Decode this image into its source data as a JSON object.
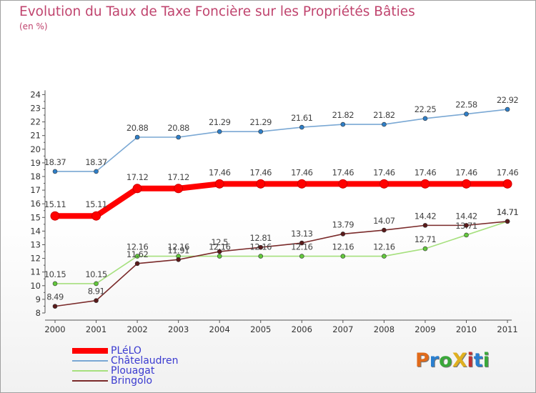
{
  "title": "Evolution du Taux de Taxe Foncière sur les Propriétés Bâties",
  "subtitle": "(en %)",
  "logo": {
    "text": "ProXiti",
    "letter_colors": [
      "#e06a1a",
      "#2a7fd0",
      "#3aa83a",
      "#e0b020",
      "#c03030",
      "#2a7fd0",
      "#3aa83a"
    ]
  },
  "chart_data": {
    "type": "line",
    "title": "Evolution du Taux de Taxe Foncière sur les Propriétés Bâties",
    "ylabel": "(en %)",
    "xlabel": "",
    "categories": [
      "2000",
      "2001",
      "2002",
      "2003",
      "2004",
      "2005",
      "2006",
      "2007",
      "2008",
      "2009",
      "2010",
      "2011"
    ],
    "ylim": [
      8,
      24
    ],
    "yticks": [
      8,
      9,
      10,
      11,
      12,
      13,
      14,
      15,
      16,
      17,
      18,
      19,
      20,
      21,
      22,
      23,
      24
    ],
    "grid": false,
    "series": [
      {
        "name": "PLéLO",
        "color": "#ff0000",
        "marker_color": "#ff0000",
        "emphasis": true,
        "values": [
          15.11,
          15.11,
          17.12,
          17.12,
          17.46,
          17.46,
          17.46,
          17.46,
          17.46,
          17.46,
          17.46,
          17.46
        ],
        "labels": [
          "15.11",
          "15.11",
          "17.12",
          "17.12",
          "17.46",
          "17.46",
          "17.46",
          "17.46",
          "17.46",
          "17.46",
          "17.46",
          "17.46"
        ]
      },
      {
        "name": "Châtelaudren",
        "color": "#7aa8d4",
        "marker_color": "#2f7fc8",
        "values": [
          18.37,
          18.37,
          20.88,
          20.88,
          21.29,
          21.29,
          21.61,
          21.82,
          21.82,
          22.25,
          22.58,
          22.92
        ],
        "labels": [
          "18.37",
          "18.37",
          "20.88",
          "20.88",
          "21.29",
          "21.29",
          "21.61",
          "21.82",
          "21.82",
          "22.25",
          "22.58",
          "22.92"
        ]
      },
      {
        "name": "Plouagat",
        "color": "#a6e07e",
        "marker_color": "#62c83c",
        "values": [
          10.15,
          10.15,
          12.16,
          12.16,
          12.16,
          12.16,
          12.16,
          12.16,
          12.16,
          12.71,
          13.71,
          14.71
        ],
        "labels": [
          "10.15",
          "10.15",
          "12.16",
          "12.16",
          "12.16",
          "12.16",
          "12.16",
          "12.16",
          "12.16",
          "12.71",
          "13.71",
          "14.71"
        ]
      },
      {
        "name": "Bringolo",
        "color": "#7a2a2a",
        "marker_color": "#5a1a1a",
        "values": [
          8.49,
          8.91,
          11.62,
          11.91,
          12.5,
          12.81,
          13.13,
          13.79,
          14.07,
          14.42,
          14.42,
          14.71
        ],
        "labels": [
          "8.49",
          "8.91",
          "11.62",
          "11.91",
          "12.5",
          "12.81",
          "13.13",
          "13.79",
          "14.07",
          "14.42",
          "14.42",
          "14.71"
        ]
      }
    ],
    "legend_position": "bottom-left"
  }
}
